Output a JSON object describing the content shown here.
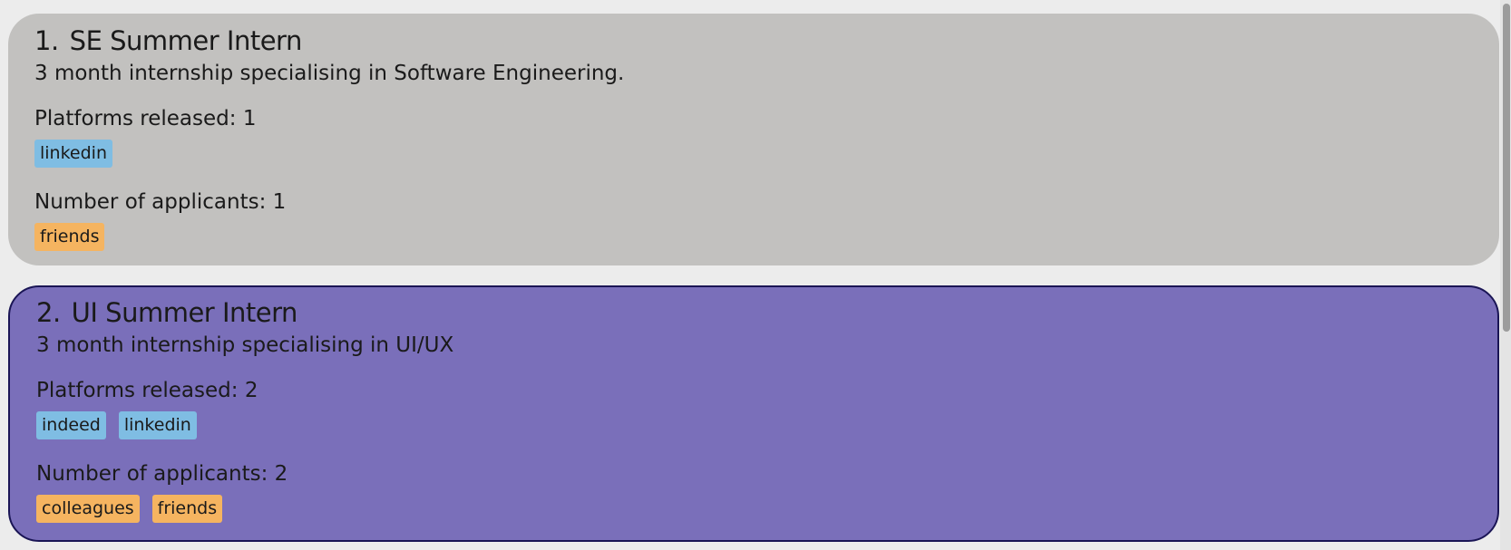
{
  "internships": [
    {
      "index": "1.",
      "title": "SE Summer Intern",
      "description": "3 month internship specialising in Software Engineering.",
      "platforms_label": "Platforms released: 1",
      "platforms": [
        "linkedin"
      ],
      "applicants_label": "Number of applicants: 1",
      "applicants": [
        "friends"
      ],
      "selected": false
    },
    {
      "index": "2.",
      "title": "UI Summer Intern",
      "description": "3 month internship specialising in UI/UX",
      "platforms_label": "Platforms released: 2",
      "platforms": [
        "indeed",
        "linkedin"
      ],
      "applicants_label": "Number of applicants: 2",
      "applicants": [
        "colleagues",
        "friends"
      ],
      "selected": true
    }
  ],
  "colors": {
    "card_unselected": "#c2c1bf",
    "card_selected": "#7a6fba",
    "card_selected_border": "#1a1555",
    "platform_tag": "#7fbde3",
    "applicant_tag": "#f5b460",
    "background": "#ececec"
  }
}
